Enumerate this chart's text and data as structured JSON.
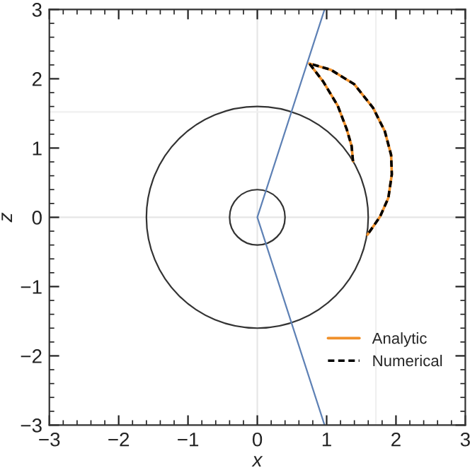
{
  "chart_data": {
    "type": "line",
    "xlabel": "x",
    "ylabel": "z",
    "xlim": [
      -3,
      3
    ],
    "ylim": [
      -3,
      3
    ],
    "xticks": [
      -3,
      -2,
      -1,
      0,
      1,
      2,
      3
    ],
    "yticks": [
      -3,
      -2,
      -1,
      0,
      1,
      2,
      3
    ],
    "grid": false,
    "legend": "bottom right",
    "marker": "none",
    "ref_lines": [
      {
        "axis": "x",
        "value": 0,
        "color": "#e6e6e6"
      },
      {
        "axis": "x",
        "value": 1.71,
        "color": "#f0f0f0"
      },
      {
        "axis": "y",
        "value": 0,
        "color": "#e6e6e6"
      },
      {
        "axis": "y",
        "value": 1.52,
        "color": "#f0f0f0"
      }
    ],
    "series": [
      {
        "color": "#5e81b5",
        "line_style": "solid",
        "x": [
          0.97,
          0,
          0.97
        ],
        "values": [
          3,
          0,
          -3
        ]
      },
      {
        "name": "Analytic",
        "color": "#f0902a",
        "line_style": "solid",
        "x": [
          1.38,
          1.36,
          1.29,
          1.16,
          0.95,
          0.75,
          1.06,
          1.4,
          1.67,
          1.84,
          1.93,
          1.94,
          1.89,
          1.77,
          1.59
        ],
        "values": [
          0.81,
          1.03,
          1.27,
          1.61,
          1.96,
          2.22,
          2.13,
          1.92,
          1.58,
          1.24,
          0.9,
          0.62,
          0.28,
          0.01,
          -0.25
        ]
      },
      {
        "name": "Numerical",
        "color": "#000000",
        "line_style": "dashed",
        "x": [
          1.38,
          1.36,
          1.29,
          1.16,
          0.95,
          0.75,
          1.06,
          1.4,
          1.67,
          1.84,
          1.93,
          1.94,
          1.89,
          1.77,
          1.59
        ],
        "values": [
          0.81,
          1.03,
          1.27,
          1.61,
          1.96,
          2.22,
          2.13,
          1.92,
          1.58,
          1.24,
          0.9,
          0.62,
          0.28,
          0.01,
          -0.25
        ]
      }
    ]
  }
}
